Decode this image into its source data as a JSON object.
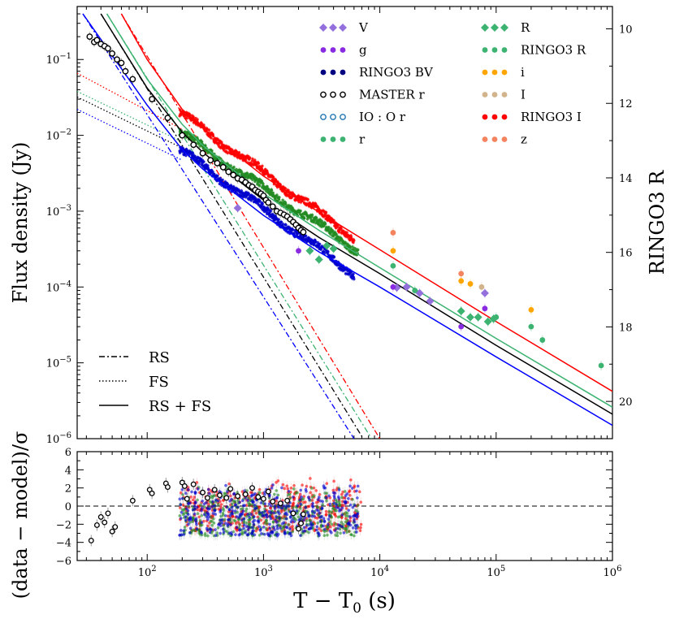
{
  "chart_data": [
    {
      "type": "scatter",
      "title": "",
      "xscale": "log",
      "yscale": "log",
      "xlim": [
        25,
        1000000
      ],
      "ylim": [
        1e-06,
        0.5
      ],
      "xlabel_parts": [
        "T − T",
        "0",
        " (s)"
      ],
      "ylabel": "Flux density (Jy)",
      "right_ylabel": "RINGO3 R",
      "right_ylim_mag": [
        21,
        9.4
      ],
      "right_ticks": [
        "10",
        "12",
        "14",
        "16",
        "18",
        "20"
      ],
      "right_tick_values": [
        10,
        12,
        14,
        16,
        18,
        20
      ],
      "y_tick_base": "10",
      "y_tick_exps": [
        "−6",
        "−5",
        "−4",
        "−3",
        "−2",
        "−1"
      ],
      "y_tick_values": [
        -6,
        -5,
        -4,
        -3,
        -2,
        -1
      ],
      "legend_filters": [
        {
          "label": "V",
          "color": "#9370db",
          "marker": "diamond"
        },
        {
          "label": "g",
          "color": "#8a2be2",
          "marker": "circle"
        },
        {
          "label": "RINGO3  BV",
          "color": "#000080",
          "marker": "circle"
        },
        {
          "label": "MASTER  r",
          "color": "#000000",
          "marker": "open-circle"
        },
        {
          "label": "IO : O  r",
          "color": "#1f77b4",
          "marker": "open-circle"
        },
        {
          "label": "r",
          "color": "#3cb371",
          "marker": "circle"
        },
        {
          "label": "R",
          "color": "#3cb371",
          "marker": "diamond"
        },
        {
          "label": "RINGO3  R",
          "color": "#3cb371",
          "marker": "circle"
        },
        {
          "label": "i",
          "color": "#ffa500",
          "marker": "circle"
        },
        {
          "label": "I",
          "color": "#d2b48c",
          "marker": "circle"
        },
        {
          "label": "RINGO3  I",
          "color": "#ff0000",
          "marker": "circle"
        },
        {
          "label": "z",
          "color": "#f4845f",
          "marker": "circle"
        }
      ],
      "legend_components": [
        {
          "label": "RS",
          "style": "dashdot"
        },
        {
          "label": "FS",
          "style": "dotted"
        },
        {
          "label": "RS + FS",
          "style": "solid"
        }
      ],
      "model_curves": [
        {
          "name": "red (RINGO3 I)",
          "color": "#ff0000",
          "rs": {
            "x": [
              60,
              10000
            ],
            "y": [
              0.4,
              1e-06
            ]
          },
          "fs": {
            "x": [
              25,
              200
            ],
            "y": [
              0.066,
              0.012
            ]
          },
          "total": {
            "x": [
              60,
              100,
              200,
              300,
              500,
              1000,
              3000,
              10000,
              100000,
              1000000
            ],
            "y": [
              0.4,
              0.1,
              0.022,
              0.0125,
              0.0067,
              0.0029,
              0.00097,
              0.00031,
              3.5e-05,
              4.2e-06
            ]
          }
        },
        {
          "name": "green (RINGO3 R)",
          "color": "#3cb371",
          "rs": {
            "x": [
              45,
              8500
            ],
            "y": [
              0.4,
              1e-06
            ]
          },
          "fs": {
            "x": [
              25,
              200
            ],
            "y": [
              0.038,
              0.0082
            ]
          },
          "total": {
            "x": [
              45,
              100,
              200,
              300,
              500,
              1000,
              3000,
              10000,
              100000,
              1000000
            ],
            "y": [
              0.4,
              0.055,
              0.014,
              0.0074,
              0.0039,
              0.0017,
              0.00056,
              0.00018,
              2.1e-05,
              2.6e-06
            ]
          }
        },
        {
          "name": "black (MASTER r)",
          "color": "#000000",
          "rs": {
            "x": [
              40,
              7200
            ],
            "y": [
              0.4,
              1e-06
            ]
          },
          "fs": {
            "x": [
              25,
              200
            ],
            "y": [
              0.032,
              0.0068
            ]
          },
          "total": {
            "x": [
              40,
              100,
              200,
              300,
              500,
              1000,
              3000,
              10000,
              100000,
              1000000
            ],
            "y": [
              0.4,
              0.042,
              0.011,
              0.006,
              0.0032,
              0.0014,
              0.00045,
              0.00015,
              1.7e-05,
              2.1e-06
            ]
          }
        },
        {
          "name": "blue (RINGO3 BV)",
          "color": "#0000ff",
          "rs": {
            "x": [
              28,
              6000
            ],
            "y": [
              0.4,
              1e-06
            ]
          },
          "fs": {
            "x": [
              25,
              200
            ],
            "y": [
              0.022,
              0.0047
            ]
          },
          "total": {
            "x": [
              28,
              100,
              200,
              300,
              500,
              1000,
              3000,
              10000,
              100000,
              1000000
            ],
            "y": [
              0.4,
              0.025,
              0.0065,
              0.0036,
              0.002,
              0.00088,
              0.00029,
              0.0001,
              1.2e-05,
              1.5e-06
            ]
          }
        }
      ],
      "observations": [
        {
          "name": "RINGO3 I band",
          "color": "#ff0000",
          "x_range": [
            190,
            6000
          ],
          "y_range": [
            0.02,
            0.00045
          ]
        },
        {
          "name": "RINGO3 R band",
          "color": "#228b22",
          "x_range": [
            190,
            6500
          ],
          "y_range": [
            0.011,
            0.0003
          ]
        },
        {
          "name": "RINGO3 BV band",
          "color": "#0000cd",
          "x_range": [
            190,
            6000
          ],
          "y_range": [
            0.0065,
            0.00015
          ]
        },
        {
          "name": "MASTER r",
          "color": "#000000",
          "marker": "open-circle",
          "x": [
            32,
            35,
            37,
            40,
            43,
            46,
            50,
            55,
            60,
            65,
            75,
            110,
            150,
            200,
            250,
            300,
            350,
            400,
            450,
            500,
            550,
            600,
            650,
            700,
            750,
            800,
            850,
            900,
            950,
            1000,
            1050,
            1100,
            1200,
            1300,
            1400,
            1500,
            1600,
            1700,
            1800,
            1900,
            2000,
            2100,
            2200
          ],
          "y": [
            0.2,
            0.17,
            0.18,
            0.16,
            0.15,
            0.14,
            0.12,
            0.1,
            0.09,
            0.07,
            0.055,
            0.03,
            0.017,
            0.01,
            0.0075,
            0.0058,
            0.0047,
            0.0043,
            0.0038,
            0.0033,
            0.003,
            0.0027,
            0.0026,
            0.0024,
            0.0022,
            0.0021,
            0.0019,
            0.0018,
            0.0017,
            0.0016,
            0.0014,
            0.0013,
            0.00115,
            0.001,
            0.00095,
            0.0009,
            0.00085,
            0.00078,
            0.00072,
            0.00066,
            0.0006,
            0.00056,
            0.00053
          ]
        },
        {
          "name": "V",
          "color": "#9370db",
          "marker": "diamond",
          "x": [
            600,
            14000,
            17000,
            22000,
            27000,
            80000
          ],
          "y": [
            0.0011,
            9.8e-05,
            0.0001,
            8.3e-05,
            6.5e-05,
            8.3e-05
          ]
        },
        {
          "name": "g",
          "color": "#8a2be2",
          "marker": "circle",
          "x": [
            2000,
            13000,
            50000,
            80000
          ],
          "y": [
            0.0003,
            0.0001,
            3e-05,
            5.2e-05
          ]
        },
        {
          "name": "R",
          "color": "#3cb371",
          "marker": "diamond",
          "x": [
            2500,
            3000,
            3500,
            4000,
            50000,
            60000,
            70000,
            85000,
            95000
          ],
          "y": [
            0.0003,
            0.00023,
            0.00035,
            0.00032,
            4.8e-05,
            4e-05,
            4e-05,
            3.5e-05,
            3.8e-05
          ]
        },
        {
          "name": "r",
          "color": "#3cb371",
          "marker": "circle",
          "x": [
            13000,
            20000,
            50000,
            100000,
            200000,
            250000,
            800000
          ],
          "y": [
            0.00019,
            9e-05,
            4.8e-05,
            4e-05,
            3e-05,
            2e-05,
            9.2e-06
          ]
        },
        {
          "name": "i",
          "color": "#ffa500",
          "marker": "circle",
          "x": [
            13000,
            50000,
            60000,
            200000
          ],
          "y": [
            0.0003,
            0.00012,
            0.00011,
            5e-05
          ]
        },
        {
          "name": "I",
          "color": "#d2b48c",
          "marker": "circle",
          "x": [
            75000
          ],
          "y": [
            0.0001
          ]
        },
        {
          "name": "z",
          "color": "#f4845f",
          "marker": "circle",
          "x": [
            13000,
            50000
          ],
          "y": [
            0.00052,
            0.00015
          ]
        }
      ]
    },
    {
      "type": "scatter",
      "title": "",
      "xscale": "log",
      "xlim": [
        25,
        1000000
      ],
      "ylim": [
        -6,
        6
      ],
      "ylabel": "(data − model)/σ",
      "y_ticks": [
        "−6",
        "−4",
        "−2",
        "0",
        "2",
        "4",
        "6"
      ],
      "y_tick_values": [
        -6,
        -4,
        -2,
        0,
        2,
        4,
        6
      ],
      "x_tick_base": "10",
      "x_tick_exps": [
        "2",
        "3",
        "4",
        "5",
        "6"
      ],
      "x_tick_values": [
        2,
        3,
        4,
        5,
        6
      ],
      "reference_line": {
        "y": 0,
        "style": "dashed"
      },
      "master_residuals": {
        "x": [
          33,
          37,
          40,
          43,
          46,
          50,
          53,
          75,
          105,
          110,
          145,
          150,
          200,
          210,
          220,
          250,
          300,
          330,
          380,
          420,
          480,
          520,
          600,
          700,
          800,
          900,
          1000,
          1100,
          1200,
          1400,
          1600,
          1800,
          2000,
          2100,
          2200
        ],
        "y": [
          -3.8,
          -2.1,
          -1.2,
          -1.8,
          -0.8,
          -2.8,
          -2.3,
          0.6,
          1.8,
          1.4,
          2.5,
          2.1,
          2.6,
          2.2,
          0.8,
          2.4,
          1.5,
          0.9,
          1.8,
          1.2,
          0.9,
          1.9,
          1.1,
          1.3,
          2.0,
          1.0,
          0.8,
          1.6,
          0.5,
          0.3,
          0.6,
          -0.8,
          -2.5,
          -1.9,
          -0.9
        ]
      },
      "color_residual_bands": [
        {
          "color": "#ff0000",
          "x_range": [
            190,
            7000
          ],
          "y_range": [
            -2.5,
            3.5
          ]
        },
        {
          "color": "#228b22",
          "x_range": [
            190,
            6500
          ],
          "y_range": [
            -3.0,
            2.5
          ]
        },
        {
          "color": "#0000cd",
          "x_range": [
            190,
            6500
          ],
          "y_range": [
            -3.0,
            3.0
          ]
        }
      ]
    }
  ]
}
